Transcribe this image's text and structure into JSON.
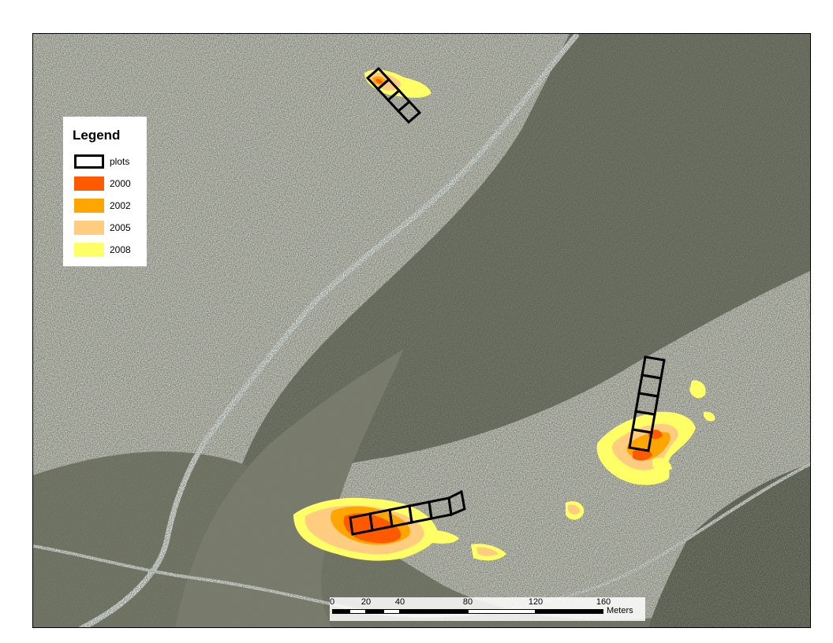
{
  "legend": {
    "title": "Legend",
    "items": [
      {
        "label": "plots",
        "color": "#ffffff",
        "outline": "#000000"
      },
      {
        "label": "2000",
        "color": "#ff5a00"
      },
      {
        "label": "2002",
        "color": "#ffa500"
      },
      {
        "label": "2005",
        "color": "#ffcc80"
      },
      {
        "label": "2008",
        "color": "#ffff66"
      }
    ]
  },
  "scalebar": {
    "ticks": [
      "0",
      "20",
      "40",
      "80",
      "120",
      "160"
    ],
    "unit": "Meters"
  }
}
